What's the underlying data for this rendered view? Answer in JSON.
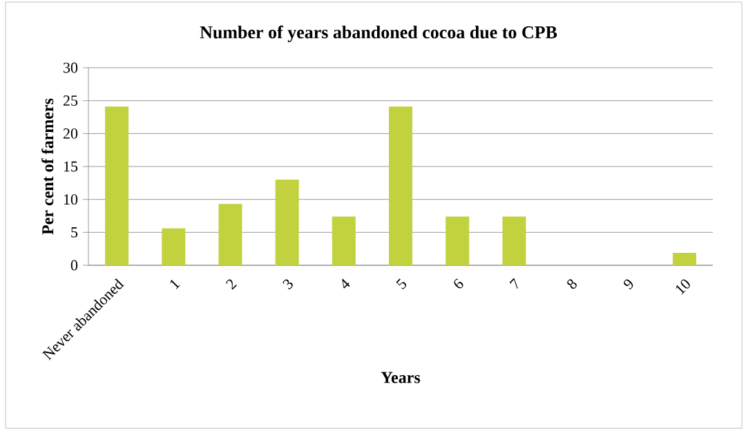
{
  "chart_data": {
    "type": "bar",
    "title": "Number of years abandoned cocoa due to CPB",
    "xlabel": "Years",
    "ylabel": "Per cent of farmers",
    "categories": [
      "Never abandoned",
      "1",
      "2",
      "3",
      "4",
      "5",
      "6",
      "7",
      "8",
      "9",
      "10"
    ],
    "values": [
      24.1,
      5.6,
      9.3,
      13.0,
      7.4,
      24.1,
      7.4,
      7.4,
      0,
      0,
      1.9
    ],
    "color": "#c2d13e",
    "ylim": [
      0,
      30
    ],
    "yticks": [
      0,
      5,
      10,
      15,
      20,
      25,
      30
    ],
    "grid": "y"
  }
}
